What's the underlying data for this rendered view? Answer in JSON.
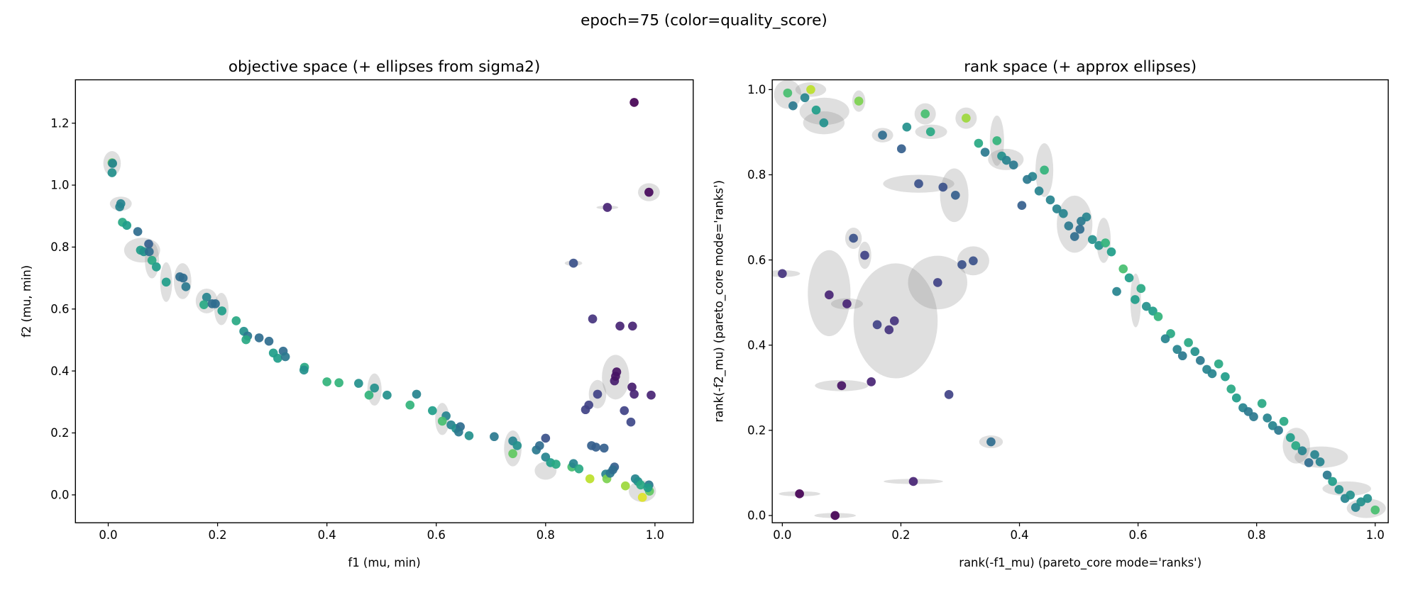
{
  "figure": {
    "suptitle": "epoch=75 (color=quality_score)"
  },
  "chart_data": [
    {
      "type": "scatter",
      "title": "objective space (+ ellipses from sigma2)",
      "xlabel": "f1 (mu, min)",
      "ylabel": "f2 (mu, min)",
      "xlim": [
        -0.06,
        1.07
      ],
      "ylim": [
        -0.09,
        1.34
      ],
      "xticks": [
        "0.0",
        "0.2",
        "0.4",
        "0.6",
        "0.8",
        "1.0"
      ],
      "yticks": [
        "0.0",
        "0.2",
        "0.4",
        "0.6",
        "0.8",
        "1.0",
        "1.2"
      ],
      "grid": false,
      "colormap": "viridis",
      "color_by": "quality_score",
      "points_xy_quality": [
        [
          0.007,
          1.072,
          0.75
        ],
        [
          0.008,
          1.07,
          0.45
        ],
        [
          0.007,
          1.04,
          0.5
        ],
        [
          0.023,
          0.94,
          0.45
        ],
        [
          0.021,
          0.93,
          0.45
        ],
        [
          0.026,
          0.88,
          0.6
        ],
        [
          0.034,
          0.87,
          0.55
        ],
        [
          0.054,
          0.85,
          0.35
        ],
        [
          0.074,
          0.81,
          0.3
        ],
        [
          0.059,
          0.79,
          0.55
        ],
        [
          0.065,
          0.785,
          0.5
        ],
        [
          0.075,
          0.785,
          0.35
        ],
        [
          0.08,
          0.757,
          0.6
        ],
        [
          0.088,
          0.736,
          0.55
        ],
        [
          0.106,
          0.687,
          0.55
        ],
        [
          0.131,
          0.704,
          0.35
        ],
        [
          0.137,
          0.7,
          0.35
        ],
        [
          0.142,
          0.672,
          0.4
        ],
        [
          0.18,
          0.638,
          0.45
        ],
        [
          0.175,
          0.614,
          0.6
        ],
        [
          0.19,
          0.617,
          0.35
        ],
        [
          0.196,
          0.617,
          0.35
        ],
        [
          0.208,
          0.594,
          0.55
        ],
        [
          0.234,
          0.562,
          0.6
        ],
        [
          0.248,
          0.528,
          0.5
        ],
        [
          0.255,
          0.513,
          0.4
        ],
        [
          0.252,
          0.501,
          0.6
        ],
        [
          0.276,
          0.507,
          0.35
        ],
        [
          0.294,
          0.496,
          0.35
        ],
        [
          0.302,
          0.458,
          0.55
        ],
        [
          0.31,
          0.441,
          0.55
        ],
        [
          0.32,
          0.464,
          0.35
        ],
        [
          0.324,
          0.446,
          0.4
        ],
        [
          0.359,
          0.412,
          0.6
        ],
        [
          0.358,
          0.403,
          0.5
        ],
        [
          0.4,
          0.365,
          0.65
        ],
        [
          0.422,
          0.362,
          0.65
        ],
        [
          0.458,
          0.36,
          0.5
        ],
        [
          0.487,
          0.345,
          0.5
        ],
        [
          0.477,
          0.322,
          0.65
        ],
        [
          0.51,
          0.322,
          0.5
        ],
        [
          0.552,
          0.29,
          0.65
        ],
        [
          0.564,
          0.325,
          0.45
        ],
        [
          0.593,
          0.272,
          0.55
        ],
        [
          0.618,
          0.255,
          0.45
        ],
        [
          0.611,
          0.238,
          0.7
        ],
        [
          0.627,
          0.226,
          0.45
        ],
        [
          0.636,
          0.214,
          0.5
        ],
        [
          0.644,
          0.22,
          0.35
        ],
        [
          0.641,
          0.203,
          0.4
        ],
        [
          0.66,
          0.191,
          0.5
        ],
        [
          0.706,
          0.188,
          0.4
        ],
        [
          0.74,
          0.174,
          0.45
        ],
        [
          0.748,
          0.159,
          0.5
        ],
        [
          0.74,
          0.133,
          0.75
        ],
        [
          0.783,
          0.145,
          0.4
        ],
        [
          0.789,
          0.159,
          0.35
        ],
        [
          0.8,
          0.183,
          0.25
        ],
        [
          0.8,
          0.122,
          0.45
        ],
        [
          0.809,
          0.104,
          0.55
        ],
        [
          0.819,
          0.099,
          0.6
        ],
        [
          0.848,
          0.09,
          0.7
        ],
        [
          0.851,
          0.101,
          0.45
        ],
        [
          0.861,
          0.084,
          0.6
        ],
        [
          0.881,
          0.052,
          0.9
        ],
        [
          0.884,
          0.159,
          0.3
        ],
        [
          0.892,
          0.154,
          0.3
        ],
        [
          0.907,
          0.151,
          0.3
        ],
        [
          0.91,
          0.067,
          0.45
        ],
        [
          0.912,
          0.052,
          0.8
        ],
        [
          0.918,
          0.07,
          0.4
        ],
        [
          0.926,
          0.09,
          0.3
        ],
        [
          0.923,
          0.081,
          0.35
        ],
        [
          0.946,
          0.029,
          0.85
        ],
        [
          0.964,
          0.052,
          0.45
        ],
        [
          0.969,
          0.043,
          0.5
        ],
        [
          0.974,
          0.032,
          0.6
        ],
        [
          0.989,
          0.032,
          0.4
        ],
        [
          0.99,
          0.012,
          0.75
        ],
        [
          0.977,
          -0.008,
          0.95
        ],
        [
          0.987,
          0.023,
          0.55
        ],
        [
          0.962,
          1.267,
          0.0
        ],
        [
          0.989,
          0.977,
          0.02
        ],
        [
          0.913,
          0.928,
          0.1
        ],
        [
          0.851,
          0.748,
          0.25
        ],
        [
          0.886,
          0.568,
          0.15
        ],
        [
          0.936,
          0.545,
          0.1
        ],
        [
          0.959,
          0.545,
          0.1
        ],
        [
          0.93,
          0.397,
          0.05
        ],
        [
          0.926,
          0.368,
          0.08
        ],
        [
          0.928,
          0.383,
          0.05
        ],
        [
          0.958,
          0.348,
          0.08
        ],
        [
          0.962,
          0.325,
          0.1
        ],
        [
          0.993,
          0.322,
          0.1
        ],
        [
          0.895,
          0.325,
          0.2
        ],
        [
          0.879,
          0.29,
          0.2
        ],
        [
          0.873,
          0.275,
          0.2
        ],
        [
          0.944,
          0.272,
          0.2
        ],
        [
          0.956,
          0.235,
          0.22
        ]
      ],
      "ellipses_xy_sx_sy": [
        [
          0.007,
          1.07,
          0.016,
          0.04
        ],
        [
          0.023,
          0.94,
          0.02,
          0.023
        ],
        [
          0.062,
          0.79,
          0.033,
          0.04
        ],
        [
          0.08,
          0.757,
          0.013,
          0.058
        ],
        [
          0.106,
          0.687,
          0.011,
          0.064
        ],
        [
          0.136,
          0.69,
          0.016,
          0.058
        ],
        [
          0.18,
          0.626,
          0.02,
          0.04
        ],
        [
          0.207,
          0.6,
          0.013,
          0.052
        ],
        [
          0.928,
          0.38,
          0.025,
          0.072
        ],
        [
          0.989,
          0.977,
          0.02,
          0.029
        ],
        [
          0.895,
          0.325,
          0.016,
          0.046
        ],
        [
          0.74,
          0.15,
          0.016,
          0.058
        ],
        [
          0.487,
          0.34,
          0.013,
          0.052
        ],
        [
          0.611,
          0.245,
          0.013,
          0.052
        ],
        [
          0.913,
          0.928,
          0.02,
          0.006
        ],
        [
          0.851,
          0.748,
          0.016,
          0.009
        ],
        [
          0.977,
          0.012,
          0.025,
          0.035
        ],
        [
          0.8,
          0.078,
          0.02,
          0.029
        ]
      ]
    },
    {
      "type": "scatter",
      "title": "rank space (+ approx ellipses)",
      "xlabel": "rank(-f1_mu)  (pareto_core mode='ranks')",
      "ylabel": "rank(-f2_mu)  (pareto_core mode='ranks')",
      "xlim": [
        -0.017,
        1.022
      ],
      "ylim": [
        -0.017,
        1.023
      ],
      "xticks": [
        "0.0",
        "0.2",
        "0.4",
        "0.6",
        "0.8",
        "1.0"
      ],
      "yticks": [
        "0.0",
        "0.2",
        "0.4",
        "0.6",
        "0.8",
        "1.0"
      ],
      "grid": false,
      "colormap": "viridis",
      "color_by": "quality_score",
      "points_xy_quality": [
        [
          0.009,
          0.992,
          0.7
        ],
        [
          0.048,
          1.0,
          0.9
        ],
        [
          0.038,
          0.981,
          0.45
        ],
        [
          0.018,
          0.962,
          0.4
        ],
        [
          0.057,
          0.952,
          0.55
        ],
        [
          0.07,
          0.922,
          0.5
        ],
        [
          0.129,
          0.973,
          0.8
        ],
        [
          0.241,
          0.943,
          0.7
        ],
        [
          0.31,
          0.933,
          0.85
        ],
        [
          0.21,
          0.912,
          0.5
        ],
        [
          0.25,
          0.901,
          0.6
        ],
        [
          0.169,
          0.893,
          0.35
        ],
        [
          0.201,
          0.861,
          0.3
        ],
        [
          0.331,
          0.874,
          0.6
        ],
        [
          0.362,
          0.88,
          0.65
        ],
        [
          0.342,
          0.853,
          0.4
        ],
        [
          0.37,
          0.844,
          0.5
        ],
        [
          0.378,
          0.834,
          0.45
        ],
        [
          0.39,
          0.823,
          0.4
        ],
        [
          0.442,
          0.811,
          0.65
        ],
        [
          0.422,
          0.796,
          0.45
        ],
        [
          0.413,
          0.789,
          0.4
        ],
        [
          0.433,
          0.762,
          0.45
        ],
        [
          0.452,
          0.741,
          0.45
        ],
        [
          0.463,
          0.72,
          0.45
        ],
        [
          0.474,
          0.709,
          0.45
        ],
        [
          0.23,
          0.779,
          0.25
        ],
        [
          0.271,
          0.771,
          0.25
        ],
        [
          0.292,
          0.752,
          0.3
        ],
        [
          0.404,
          0.728,
          0.3
        ],
        [
          0.483,
          0.68,
          0.4
        ],
        [
          0.504,
          0.691,
          0.4
        ],
        [
          0.513,
          0.701,
          0.45
        ],
        [
          0.502,
          0.672,
          0.35
        ],
        [
          0.493,
          0.655,
          0.35
        ],
        [
          0.523,
          0.648,
          0.5
        ],
        [
          0.534,
          0.634,
          0.5
        ],
        [
          0.545,
          0.64,
          0.65
        ],
        [
          0.555,
          0.619,
          0.55
        ],
        [
          0.12,
          0.651,
          0.25
        ],
        [
          0.139,
          0.611,
          0.2
        ],
        [
          0.303,
          0.589,
          0.25
        ],
        [
          0.322,
          0.598,
          0.25
        ],
        [
          0.262,
          0.547,
          0.2
        ],
        [
          0.0,
          0.568,
          0.15
        ],
        [
          0.079,
          0.518,
          0.1
        ],
        [
          0.109,
          0.497,
          0.1
        ],
        [
          0.16,
          0.448,
          0.2
        ],
        [
          0.18,
          0.436,
          0.15
        ],
        [
          0.189,
          0.457,
          0.15
        ],
        [
          0.1,
          0.305,
          0.05
        ],
        [
          0.15,
          0.314,
          0.1
        ],
        [
          0.281,
          0.284,
          0.2
        ],
        [
          0.352,
          0.173,
          0.35
        ],
        [
          0.221,
          0.08,
          0.1
        ],
        [
          0.029,
          0.051,
          0.0
        ],
        [
          0.089,
          0.0,
          0.0
        ],
        [
          0.575,
          0.579,
          0.7
        ],
        [
          0.585,
          0.558,
          0.55
        ],
        [
          0.605,
          0.533,
          0.6
        ],
        [
          0.564,
          0.526,
          0.45
        ],
        [
          0.595,
          0.507,
          0.55
        ],
        [
          0.614,
          0.491,
          0.5
        ],
        [
          0.625,
          0.48,
          0.55
        ],
        [
          0.634,
          0.467,
          0.65
        ],
        [
          0.655,
          0.427,
          0.6
        ],
        [
          0.646,
          0.415,
          0.45
        ],
        [
          0.685,
          0.406,
          0.6
        ],
        [
          0.666,
          0.39,
          0.45
        ],
        [
          0.696,
          0.385,
          0.5
        ],
        [
          0.675,
          0.375,
          0.4
        ],
        [
          0.705,
          0.364,
          0.4
        ],
        [
          0.716,
          0.343,
          0.45
        ],
        [
          0.725,
          0.333,
          0.45
        ],
        [
          0.736,
          0.356,
          0.6
        ],
        [
          0.747,
          0.326,
          0.55
        ],
        [
          0.757,
          0.297,
          0.6
        ],
        [
          0.766,
          0.276,
          0.55
        ],
        [
          0.777,
          0.253,
          0.45
        ],
        [
          0.786,
          0.244,
          0.4
        ],
        [
          0.795,
          0.232,
          0.4
        ],
        [
          0.809,
          0.263,
          0.6
        ],
        [
          0.818,
          0.229,
          0.45
        ],
        [
          0.827,
          0.211,
          0.45
        ],
        [
          0.837,
          0.2,
          0.4
        ],
        [
          0.846,
          0.221,
          0.6
        ],
        [
          0.857,
          0.183,
          0.55
        ],
        [
          0.866,
          0.164,
          0.6
        ],
        [
          0.877,
          0.152,
          0.45
        ],
        [
          0.898,
          0.143,
          0.45
        ],
        [
          0.907,
          0.126,
          0.45
        ],
        [
          0.888,
          0.124,
          0.35
        ],
        [
          0.919,
          0.095,
          0.4
        ],
        [
          0.928,
          0.08,
          0.55
        ],
        [
          0.939,
          0.061,
          0.5
        ],
        [
          0.949,
          0.04,
          0.45
        ],
        [
          0.958,
          0.048,
          0.5
        ],
        [
          0.967,
          0.019,
          0.45
        ],
        [
          0.976,
          0.032,
          0.5
        ],
        [
          0.987,
          0.04,
          0.5
        ],
        [
          1.0,
          0.013,
          0.7
        ]
      ],
      "ellipses_xy_sx_sy": [
        [
          0.079,
          0.522,
          0.036,
          0.101
        ],
        [
          0.191,
          0.457,
          0.071,
          0.135
        ],
        [
          0.262,
          0.547,
          0.05,
          0.063
        ],
        [
          0.23,
          0.779,
          0.06,
          0.021
        ],
        [
          0.29,
          0.752,
          0.024,
          0.063
        ],
        [
          0.322,
          0.598,
          0.027,
          0.034
        ],
        [
          0.1,
          0.305,
          0.045,
          0.013
        ],
        [
          0.221,
          0.08,
          0.05,
          0.006
        ],
        [
          0.029,
          0.051,
          0.035,
          0.006
        ],
        [
          0.089,
          0.0,
          0.035,
          0.006
        ],
        [
          0.352,
          0.173,
          0.02,
          0.015
        ],
        [
          0.009,
          0.989,
          0.023,
          0.034
        ],
        [
          0.071,
          0.949,
          0.042,
          0.032
        ],
        [
          0.07,
          0.922,
          0.035,
          0.027
        ],
        [
          0.048,
          1.0,
          0.026,
          0.017
        ],
        [
          0.362,
          0.88,
          0.012,
          0.059
        ],
        [
          0.442,
          0.811,
          0.015,
          0.063
        ],
        [
          0.493,
          0.684,
          0.03,
          0.067
        ],
        [
          0.909,
          0.137,
          0.045,
          0.025
        ],
        [
          0.952,
          0.063,
          0.041,
          0.017
        ],
        [
          0.985,
          0.017,
          0.033,
          0.023
        ],
        [
          0.596,
          0.505,
          0.009,
          0.063
        ],
        [
          0.867,
          0.164,
          0.023,
          0.042
        ],
        [
          0.12,
          0.651,
          0.014,
          0.025
        ],
        [
          0.139,
          0.611,
          0.011,
          0.032
        ],
        [
          0.129,
          0.973,
          0.011,
          0.025
        ],
        [
          0.241,
          0.943,
          0.018,
          0.025
        ],
        [
          0.31,
          0.933,
          0.018,
          0.025
        ],
        [
          0.251,
          0.901,
          0.027,
          0.017
        ],
        [
          0.169,
          0.893,
          0.018,
          0.017
        ],
        [
          0.0,
          0.568,
          0.03,
          0.008
        ],
        [
          0.109,
          0.497,
          0.027,
          0.013
        ],
        [
          0.377,
          0.836,
          0.03,
          0.025
        ],
        [
          0.542,
          0.646,
          0.012,
          0.053
        ]
      ]
    }
  ]
}
